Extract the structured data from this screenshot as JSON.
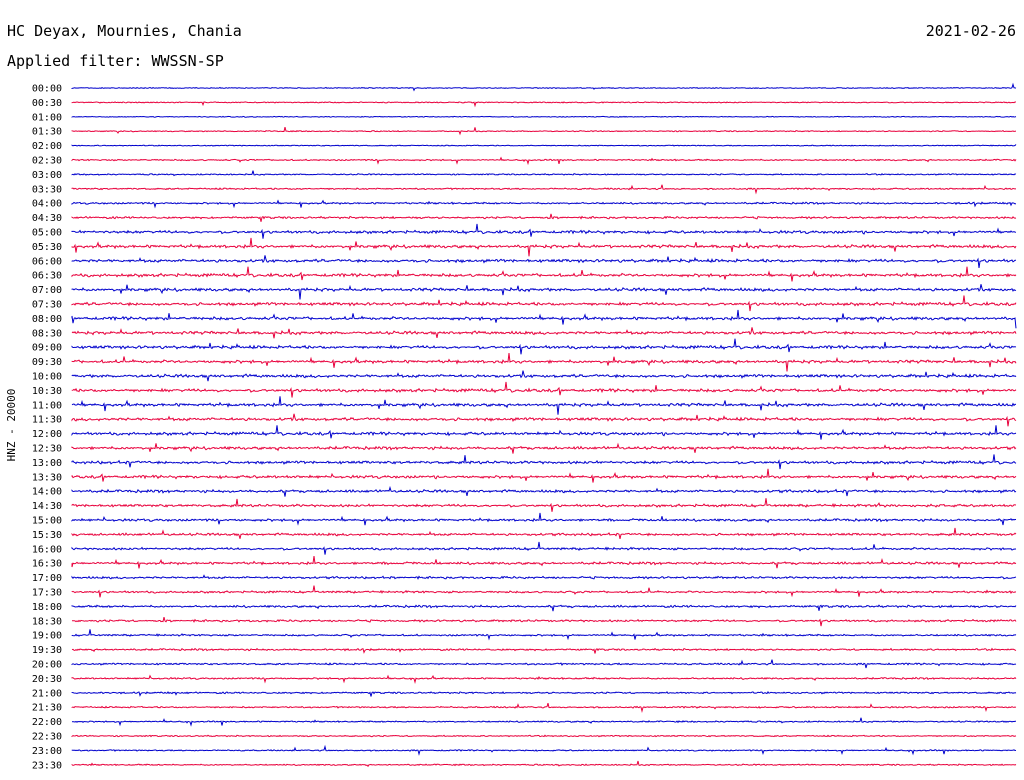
{
  "header": {
    "station": "HC Deyax, Mournies, Chania",
    "date": "2021-02-26",
    "filter": "Applied filter: WWSSN-SP"
  },
  "chart_data": {
    "type": "line",
    "title": "HC Deyax, Mournies, Chania",
    "subtitle": "Applied filter: WWSSN-SP",
    "date": "2021-02-26",
    "ylabel": "HNZ - 20000",
    "tick_labels": [
      "00:00",
      "00:30",
      "01:00",
      "01:30",
      "02:00",
      "02:30",
      "03:00",
      "03:30",
      "04:00",
      "04:30",
      "05:00",
      "05:30",
      "06:00",
      "06:30",
      "07:00",
      "07:30",
      "08:00",
      "08:30",
      "09:00",
      "09:30",
      "10:00",
      "10:30",
      "11:00",
      "11:30",
      "12:00",
      "12:30",
      "13:00",
      "13:30",
      "14:00",
      "14:30",
      "15:00",
      "15:30",
      "16:00",
      "16:30",
      "17:00",
      "17:30",
      "18:00",
      "18:30",
      "19:00",
      "19:30",
      "20:00",
      "20:30",
      "21:00",
      "21:30",
      "22:00",
      "22:30",
      "23:00",
      "23:30"
    ],
    "trace_colors": [
      "#0000cc",
      "#e8003c"
    ],
    "activity_level": [
      0.15,
      0.2,
      0.12,
      0.2,
      0.15,
      0.35,
      0.3,
      0.4,
      0.5,
      0.6,
      0.9,
      1.0,
      1.0,
      1.0,
      1.0,
      1.0,
      1.0,
      1.0,
      1.0,
      1.0,
      1.0,
      1.0,
      1.0,
      1.0,
      0.95,
      0.9,
      0.9,
      0.9,
      0.85,
      0.8,
      0.75,
      0.75,
      0.7,
      0.75,
      0.65,
      0.6,
      0.65,
      0.6,
      0.5,
      0.5,
      0.5,
      0.45,
      0.45,
      0.4,
      0.35,
      0.3,
      0.3,
      0.3
    ],
    "grid": false
  }
}
